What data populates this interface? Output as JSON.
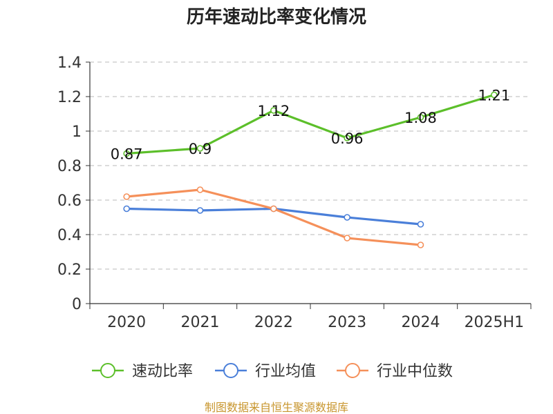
{
  "chart_data": {
    "type": "line",
    "title": "历年速动比率变化情况",
    "categories": [
      "2020",
      "2021",
      "2022",
      "2023",
      "2024",
      "2025H1"
    ],
    "yticks": [
      "0",
      "0.2",
      "0.4",
      "0.6",
      "0.8",
      "1",
      "1.2",
      "1.4"
    ],
    "ylim": [
      0,
      1.4
    ],
    "grid": true,
    "legend_position": "bottom",
    "series": [
      {
        "name": "速动比率",
        "color": "#5cbf2a",
        "values": [
          0.87,
          0.9,
          1.12,
          0.96,
          1.08,
          1.21
        ],
        "labels": [
          "0.87",
          "0.9",
          "1.12",
          "0.96",
          "1.08",
          "1.21"
        ]
      },
      {
        "name": "行业均值",
        "color": "#4a7fd9",
        "values": [
          0.55,
          0.54,
          0.55,
          0.5,
          0.46,
          null
        ]
      },
      {
        "name": "行业中位数",
        "color": "#f5905a",
        "values": [
          0.62,
          0.66,
          0.55,
          0.38,
          0.34,
          null
        ]
      }
    ]
  },
  "source": "制图数据来自恒生聚源数据库"
}
